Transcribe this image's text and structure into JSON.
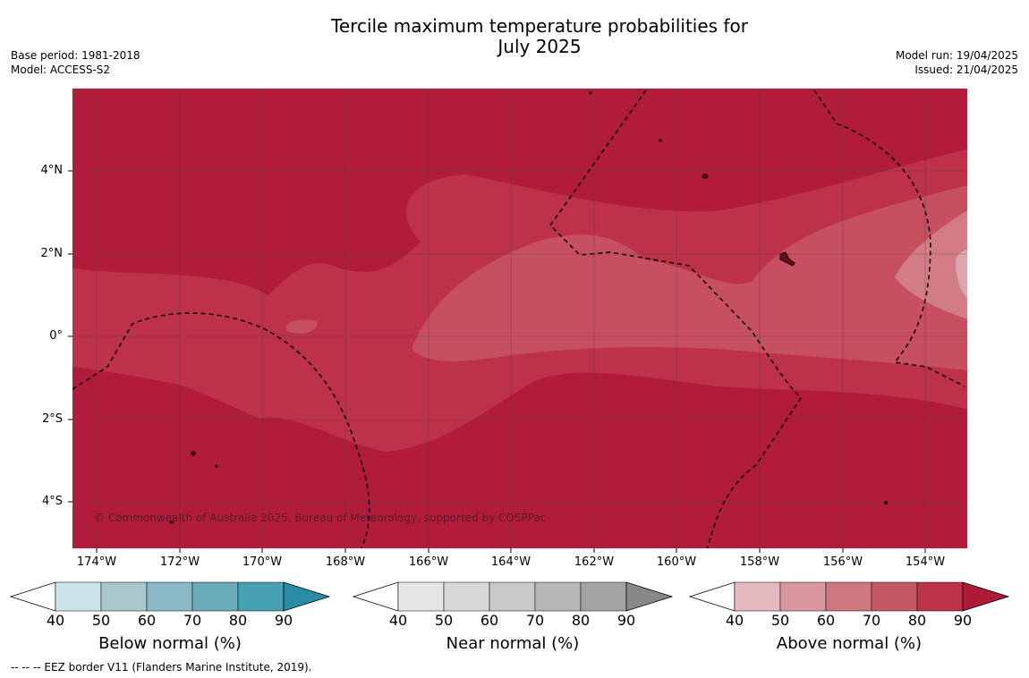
{
  "title_line1": "Tercile maximum temperature probabilities for",
  "title_line2": "July 2025",
  "meta_left": [
    "Base period: 1981-2018",
    "Model: ACCESS-S2"
  ],
  "meta_right": [
    "Model run: 19/04/2025",
    "Issued: 21/04/2025"
  ],
  "map": {
    "lat_ticks": [
      "4°N",
      "2°N",
      "0°",
      "2°S",
      "4°S"
    ],
    "lon_ticks": [
      "174°W",
      "172°W",
      "170°W",
      "168°W",
      "166°W",
      "164°W",
      "162°W",
      "160°W",
      "158°W",
      "156°W",
      "154°W"
    ],
    "copyright": "© Commonwealth of Australia 2025, Bureau of Meteorology, supported by COSPPac",
    "colors": {
      "band_90": "#b11c3a",
      "band_80": "#bd3149",
      "band_70": "#c64f60",
      "band_60": "#d17c87",
      "band_50": "#dda6ad",
      "eez_border": "#000000",
      "grid": "#444444"
    }
  },
  "colorbars": [
    {
      "label": "Below normal (%)",
      "ticks": [
        "40",
        "50",
        "60",
        "70",
        "80",
        "90"
      ],
      "colors": [
        "#ffffff",
        "#cbe3e9",
        "#a8c8cd",
        "#8ab8c4",
        "#6aabba",
        "#48a1b2",
        "#2a8ca4"
      ]
    },
    {
      "label": "Near normal (%)",
      "ticks": [
        "40",
        "50",
        "60",
        "70",
        "80",
        "90"
      ],
      "colors": [
        "#ffffff",
        "#e6e6e6",
        "#d8d8d8",
        "#c9c9c9",
        "#b7b7b7",
        "#a3a3a3",
        "#888888"
      ]
    },
    {
      "label": "Above normal (%)",
      "ticks": [
        "40",
        "50",
        "60",
        "70",
        "80",
        "90"
      ],
      "colors": [
        "#ffffff",
        "#e3b8bf",
        "#d8979f",
        "#cd7781",
        "#c45965",
        "#bc3348",
        "#ae1a38"
      ]
    }
  ],
  "footnote": "--  --  -- EEZ border V11 (Flanders Marine Institute, 2019)."
}
